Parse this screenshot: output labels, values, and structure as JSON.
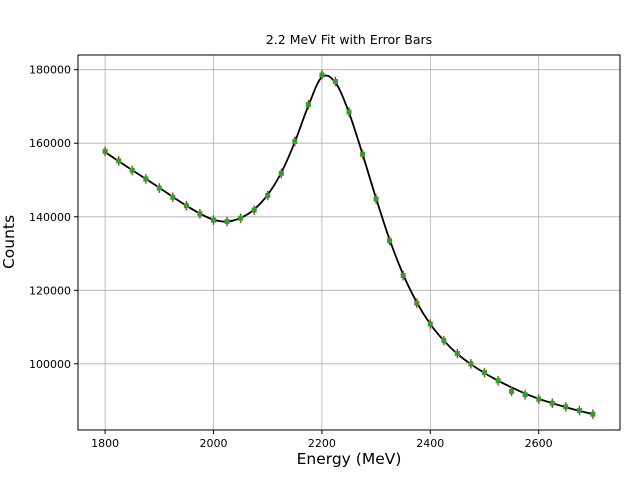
{
  "chart_data": {
    "type": "scatter",
    "title": "2.2 MeV Fit with Error Bars",
    "xlabel": "Energy (MeV)",
    "ylabel": "Counts",
    "xlim": [
      1750,
      2750
    ],
    "ylim": [
      82000,
      184000
    ],
    "xticks": [
      1800,
      2000,
      2200,
      2400,
      2600
    ],
    "yticks": [
      100000,
      120000,
      140000,
      160000,
      180000
    ],
    "grid": true,
    "grid_color": "#b0b0b0",
    "legend_position": "none",
    "series": [
      {
        "name": "data",
        "type": "scatter",
        "marker": "square",
        "marker_color": "#2ca02c",
        "errorbar_color": "#d62728",
        "yerr": 1300,
        "x": [
          1800,
          1825,
          1850,
          1875,
          1900,
          1925,
          1950,
          1975,
          2000,
          2025,
          2050,
          2075,
          2100,
          2125,
          2150,
          2175,
          2200,
          2225,
          2250,
          2275,
          2300,
          2325,
          2350,
          2375,
          2400,
          2425,
          2450,
          2475,
          2500,
          2525,
          2550,
          2575,
          2600,
          2625,
          2650,
          2675,
          2700
        ],
        "y": [
          157800,
          155200,
          152600,
          150300,
          147800,
          145300,
          143000,
          140800,
          139100,
          138700,
          139600,
          141800,
          145800,
          151800,
          160500,
          170500,
          178600,
          176800,
          168500,
          157000,
          144800,
          133500,
          124000,
          116500,
          110800,
          106300,
          102800,
          100000,
          97600,
          95400,
          92500,
          91600,
          90400,
          89300,
          88300,
          87300,
          86300
        ]
      },
      {
        "name": "fit",
        "type": "line",
        "color": "#000000",
        "x": [
          1800,
          1825,
          1850,
          1875,
          1900,
          1925,
          1950,
          1975,
          2000,
          2025,
          2050,
          2075,
          2100,
          2125,
          2150,
          2175,
          2200,
          2225,
          2250,
          2275,
          2300,
          2325,
          2350,
          2375,
          2400,
          2425,
          2450,
          2475,
          2500,
          2525,
          2550,
          2575,
          2600,
          2625,
          2650,
          2675,
          2700
        ],
        "y": [
          157600,
          155100,
          152700,
          150300,
          147900,
          145400,
          143000,
          140900,
          139200,
          138700,
          139700,
          142000,
          146000,
          152000,
          160300,
          170200,
          178000,
          176500,
          168300,
          157000,
          145000,
          133800,
          124300,
          116700,
          110800,
          106300,
          102700,
          99900,
          97500,
          95400,
          93600,
          91900,
          90500,
          89300,
          88200,
          87200,
          86300
        ]
      }
    ]
  }
}
